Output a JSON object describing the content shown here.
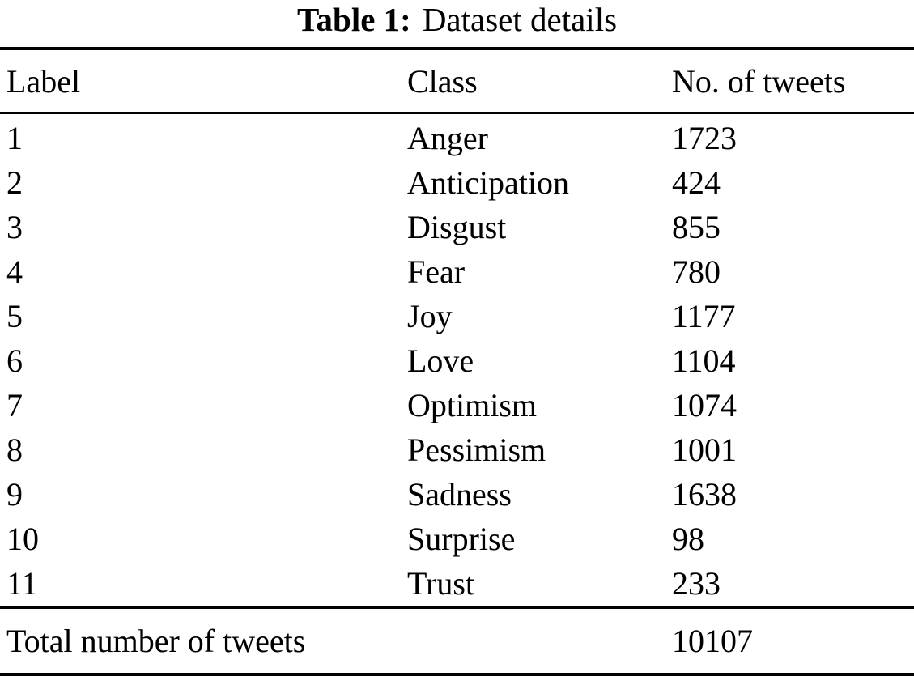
{
  "title": {
    "label": "Table 1:",
    "caption": "Dataset details"
  },
  "table": {
    "columns": [
      {
        "key": "label",
        "label": "Label"
      },
      {
        "key": "class",
        "label": "Class"
      },
      {
        "key": "tweets",
        "label": "No. of tweets"
      }
    ],
    "rows": [
      {
        "label": "1",
        "class": "Anger",
        "tweets": "1723"
      },
      {
        "label": "2",
        "class": "Anticipation",
        "tweets": "424"
      },
      {
        "label": "3",
        "class": "Disgust",
        "tweets": "855"
      },
      {
        "label": "4",
        "class": "Fear",
        "tweets": "780"
      },
      {
        "label": "5",
        "class": "Joy",
        "tweets": "1177"
      },
      {
        "label": "6",
        "class": "Love",
        "tweets": "1104"
      },
      {
        "label": "7",
        "class": "Optimism",
        "tweets": "1074"
      },
      {
        "label": "8",
        "class": "Pessimism",
        "tweets": "1001"
      },
      {
        "label": "9",
        "class": "Sadness",
        "tweets": "1638"
      },
      {
        "label": "10",
        "class": "Surprise",
        "tweets": "98"
      },
      {
        "label": "11",
        "class": "Trust",
        "tweets": "233"
      }
    ],
    "total": {
      "label": "Total number of tweets",
      "value": "10107"
    }
  },
  "colors": {
    "text": "#000000",
    "background": "#ffffff",
    "rule": "#000000"
  }
}
